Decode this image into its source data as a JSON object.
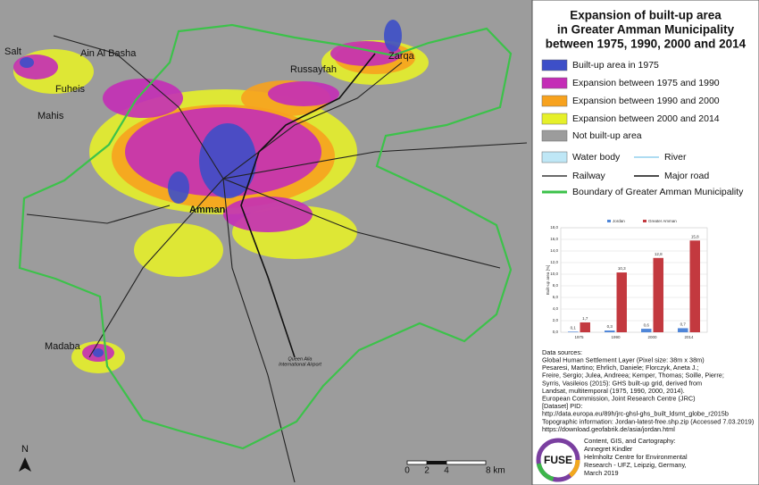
{
  "legend": {
    "title": [
      "Expansion of built-up area",
      "in Greater Amman Municipality",
      "between 1975, 1990, 2000 and 2014"
    ],
    "items": [
      {
        "label": "Built-up area in 1975",
        "color": "#3d4fc8",
        "kind": "fill"
      },
      {
        "label": "Expansion between 1975 and 1990",
        "color": "#c42db6",
        "kind": "fill"
      },
      {
        "label": "Expansion between 1990 and 2000",
        "color": "#f7a21e",
        "kind": "fill"
      },
      {
        "label": "Expansion between 2000 and 2014",
        "color": "#e6f02a",
        "kind": "fill"
      },
      {
        "label": "Not built-up area",
        "color": "#9c9c9c",
        "kind": "fill"
      },
      {
        "label": "Water body",
        "color": "#bfe7f6",
        "kind": "fill"
      },
      {
        "label": "River",
        "color": "#7ec8ea",
        "kind": "line"
      },
      {
        "label": "Railway",
        "color": "#111111",
        "kind": "line"
      },
      {
        "label": "Major road",
        "color": "#333333",
        "kind": "line"
      },
      {
        "label": "Boundary of Greater Amman Municipality",
        "color": "#3cc24a",
        "kind": "line"
      }
    ]
  },
  "map": {
    "places": [
      "Salt",
      "Ain Al Basha",
      "Russayfah",
      "Zarqa",
      "Fuheis",
      "Mahis",
      "Amman",
      "Madaba"
    ],
    "airport": [
      "Queen Alia",
      "International Airport"
    ],
    "north": "N",
    "scale": [
      "0",
      "2",
      "4",
      "8 km"
    ]
  },
  "chart_data": {
    "type": "bar",
    "categories": [
      "1975",
      "1990",
      "2000",
      "2014"
    ],
    "y_label": "Built-up area [%]",
    "series": [
      {
        "name": "Jordan",
        "color": "#4f86d8",
        "values": [
          0.1,
          0.3,
          0.6,
          0.7
        ],
        "value_labels": [
          "0,1",
          "0,3",
          "0,6",
          "0,7"
        ]
      },
      {
        "name": "Greater Amman",
        "color": "#c3393f",
        "values": [
          1.7,
          10.3,
          12.8,
          15.8
        ],
        "value_labels": [
          "1,7",
          "10,3",
          "12,8",
          "15,8"
        ]
      }
    ],
    "ylim": [
      0,
      18
    ],
    "yticks": [
      {
        "value": 0,
        "label": "0,0"
      },
      {
        "value": 2,
        "label": "2,0"
      },
      {
        "value": 4,
        "label": "4,0"
      },
      {
        "value": 6,
        "label": "6,0"
      },
      {
        "value": 8,
        "label": "8,0"
      },
      {
        "value": 10,
        "label": "10,0"
      },
      {
        "value": 12,
        "label": "12,0"
      },
      {
        "value": 14,
        "label": "14,0"
      },
      {
        "value": 16,
        "label": "16,0"
      },
      {
        "value": 18,
        "label": "18,0"
      }
    ],
    "grid": true
  },
  "sources": [
    "Data sources:",
    "Global Human Settlement Layer (Pixel size: 38m x 38m)",
    "Pesaresi, Martino; Ehrlich, Daniele; Florczyk, Aneta J.;",
    "Freire, Sergio; Julea, Andreea; Kemper, Thomas; Soille, Pierre;",
    "Syrris, Vasileios (2015): GHS built-up grid, derived from",
    "Landsat, multitemporal (1975, 1990, 2000, 2014).",
    "European Commission, Joint Research Centre (JRC)",
    "[Dataset] PID:",
    "http://data.europa.eu/89h/jrc-ghsl-ghs_built_ldsmt_globe_r2015b",
    "Topographic information: Jordan-latest-free.shp.zip (Accessed 7.03.2019)",
    "https://download.geofabrik.de/asia/jordan.html"
  ],
  "credits": {
    "logo": "FUSE",
    "lines": [
      "Content, GIS, and Cartography:",
      "Annegret Kindler",
      "Helmholtz Centre for Environmental",
      "Research - UFZ, Leipzig, Germany,",
      "March 2019"
    ]
  }
}
